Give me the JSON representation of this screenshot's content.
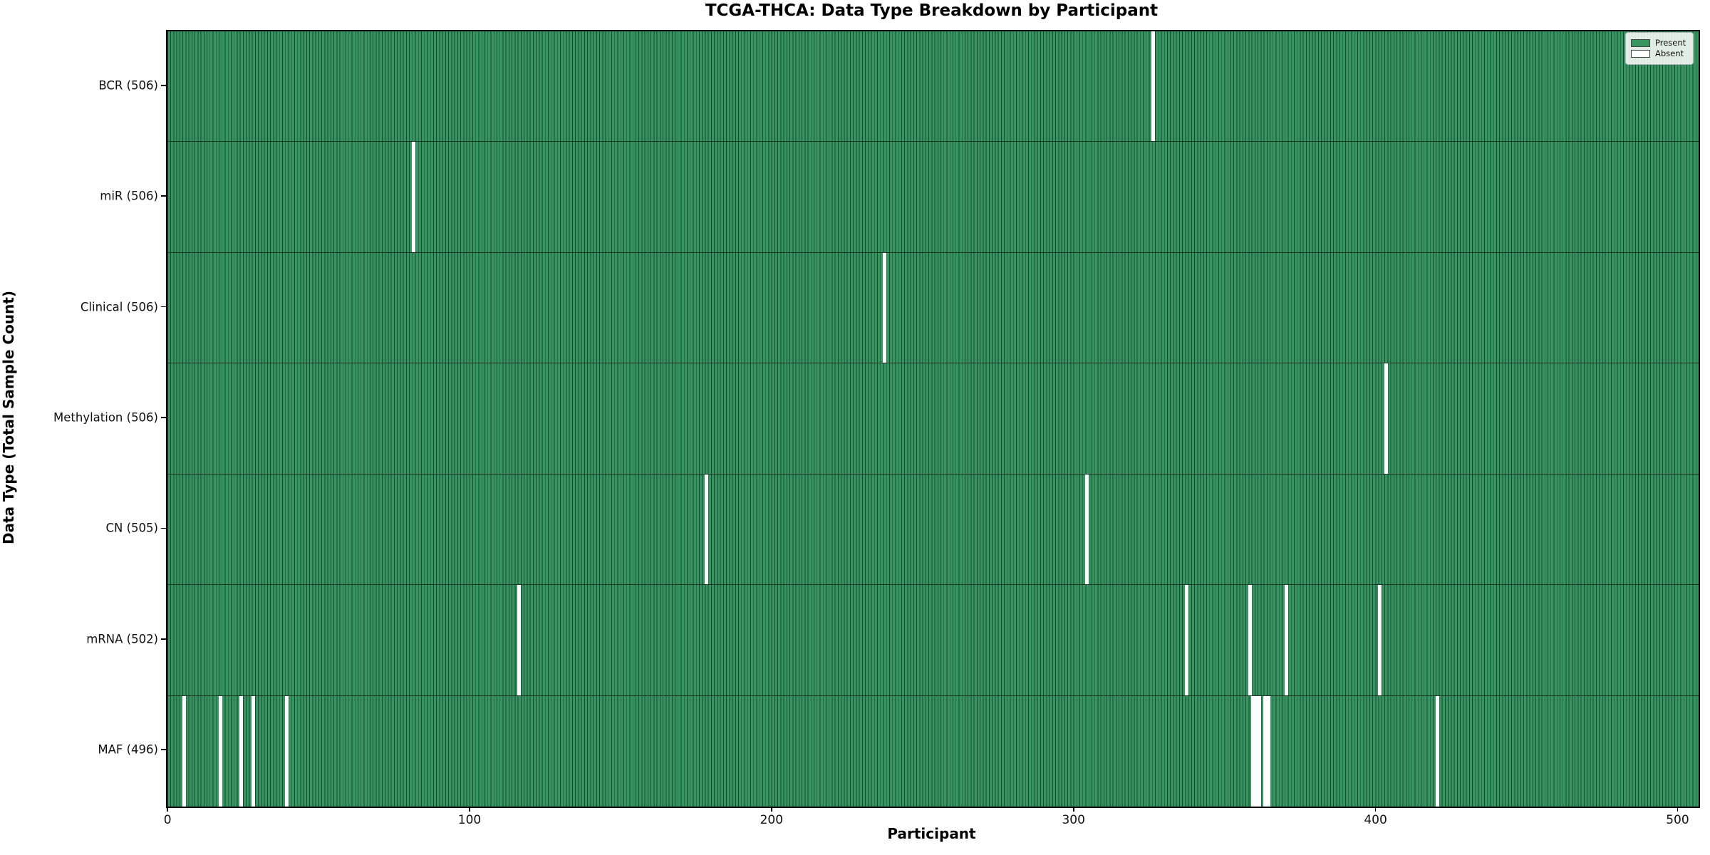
{
  "chart_data": {
    "type": "heatmap",
    "title": "TCGA-THCA: Data Type Breakdown by Participant",
    "xlabel": "Participant",
    "ylabel": "Data Type (Total Sample Count)",
    "legend": [
      {
        "label": "Present",
        "color": "#369561"
      },
      {
        "label": "Absent",
        "color": "#ffffff"
      }
    ],
    "n_participants": 507,
    "x_ticks": [
      0,
      100,
      200,
      300,
      400,
      500
    ],
    "rows": [
      {
        "label": "BCR (506)",
        "data_type": "BCR",
        "present_count": 506,
        "absent_participants": [
          326
        ]
      },
      {
        "label": "miR (506)",
        "data_type": "miR",
        "present_count": 506,
        "absent_participants": [
          81
        ]
      },
      {
        "label": "Clinical (506)",
        "data_type": "Clinical",
        "present_count": 506,
        "absent_participants": [
          237
        ]
      },
      {
        "label": "Methylation (506)",
        "data_type": "Methylation",
        "present_count": 506,
        "absent_participants": [
          403
        ]
      },
      {
        "label": "CN (505)",
        "data_type": "CN",
        "present_count": 505,
        "absent_participants": [
          178,
          304
        ]
      },
      {
        "label": "mRNA (502)",
        "data_type": "mRNA",
        "present_count": 502,
        "absent_participants": [
          116,
          337,
          358,
          370,
          401
        ]
      },
      {
        "label": "MAF (496)",
        "data_type": "MAF",
        "present_count": 496,
        "absent_participants": [
          5,
          17,
          24,
          28,
          39,
          359,
          360,
          361,
          363,
          364,
          420
        ]
      }
    ],
    "colors": {
      "present": "#369561",
      "absent": "#ffffff",
      "bar_edge": "#1b4730",
      "row_divider": "#1d3526",
      "spine": "#000000"
    },
    "axis": {
      "x_range": [
        -0.5,
        506.5
      ],
      "grid": false,
      "legend_position": "upper right"
    }
  }
}
